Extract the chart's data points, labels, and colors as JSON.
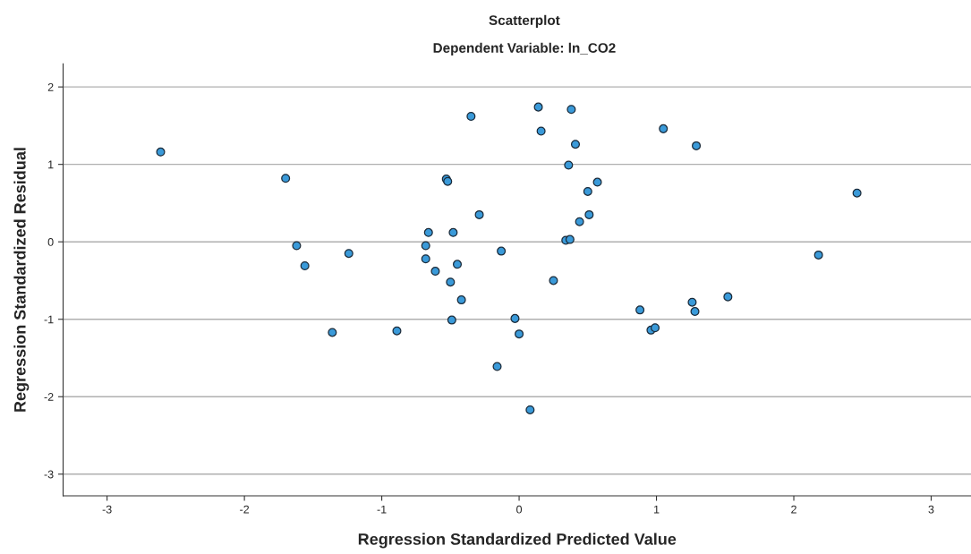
{
  "chart_data": {
    "type": "scatter",
    "title": "Scatterplot",
    "subtitle": "Dependent Variable: ln_CO2",
    "xlabel": "Regression Standardized Predicted Value",
    "ylabel": "Regression Standardized Residual",
    "x": [
      -2.61,
      -1.7,
      -1.62,
      -1.56,
      -1.24,
      -1.36,
      -0.89,
      -0.35,
      -0.53,
      -0.52,
      -0.29,
      -0.48,
      -0.66,
      -0.68,
      -0.68,
      -0.61,
      -0.45,
      -0.5,
      -0.42,
      -0.49,
      -0.13,
      -0.03,
      0.0,
      -0.16,
      0.08,
      0.14,
      0.16,
      0.38,
      0.41,
      0.36,
      0.5,
      0.57,
      0.51,
      0.44,
      0.34,
      0.37,
      0.25,
      1.05,
      1.29,
      2.46,
      2.18,
      1.52,
      1.26,
      1.28,
      0.88,
      0.96,
      0.99
    ],
    "values": [
      1.16,
      0.82,
      -0.05,
      -0.31,
      -0.15,
      -1.17,
      -1.15,
      1.62,
      0.81,
      0.78,
      0.35,
      0.12,
      0.12,
      -0.05,
      -0.22,
      -0.38,
      -0.29,
      -0.52,
      -0.75,
      -1.01,
      -0.12,
      -0.99,
      -1.19,
      -1.61,
      -2.17,
      1.74,
      1.43,
      1.71,
      1.26,
      0.99,
      0.65,
      0.77,
      0.35,
      0.26,
      0.02,
      0.03,
      -0.5,
      1.46,
      1.24,
      0.63,
      -0.17,
      -0.71,
      -0.78,
      -0.9,
      -0.88,
      -1.14,
      -1.11
    ],
    "color": "#3a9ad9",
    "marker": "circle",
    "grid": "y",
    "legend": false,
    "xlim": [
      -3.32,
      3.29
    ],
    "ylim": [
      -3.28,
      2.3
    ],
    "xticks": [
      -3,
      -2,
      -1,
      0,
      1,
      2,
      3
    ],
    "yticks": [
      -3,
      -2,
      -1,
      0,
      1,
      2
    ]
  }
}
